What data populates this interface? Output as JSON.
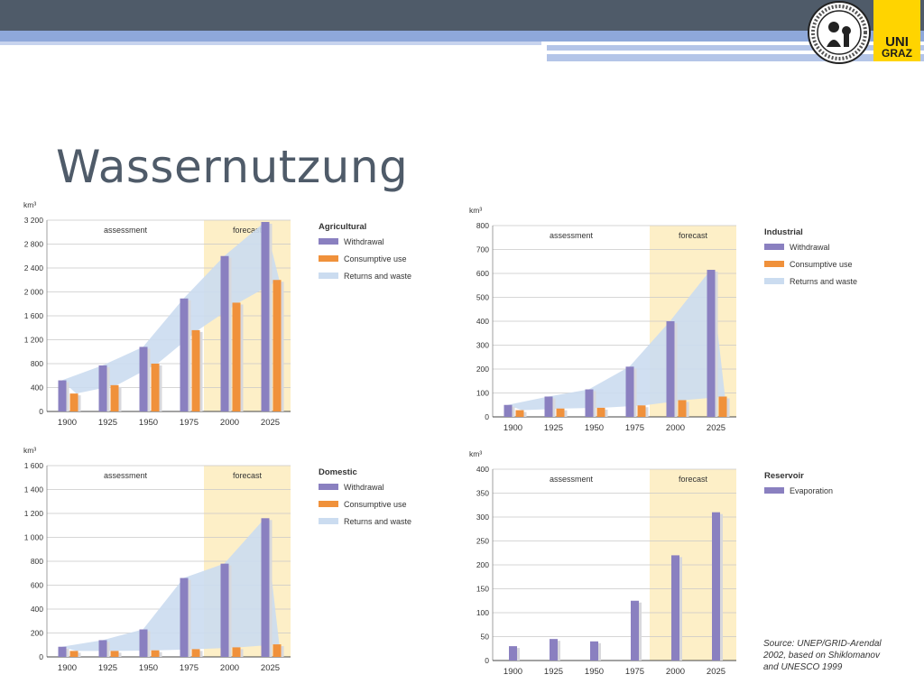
{
  "slide": {
    "title": "Wassernutzung",
    "source": "Source: UNEP/GRID-Arendal\n2002, based on Shiklomanov\nand UNESCO 1999"
  },
  "logo": {
    "text_top": "UNI",
    "text_bottom": "GRAZ"
  },
  "legend_labels": {
    "withdrawal": "Withdrawal",
    "consumptive": "Consumptive use",
    "returns": "Returns and waste",
    "evaporation": "Evaporation"
  },
  "colors": {
    "withdrawal": "#8a80c0",
    "consumptive": "#f0913b",
    "returns": "#cbdcf0",
    "forecast_bg": "#fdefc7",
    "header_dark": "#4f5b69",
    "header_blue": "#8ea8da"
  },
  "chart_data": [
    {
      "type": "bar",
      "name": "Agricultural",
      "unit": "km³",
      "categories": [
        "1900",
        "1925",
        "1950",
        "1975",
        "2000",
        "2025"
      ],
      "ylim": [
        0,
        3200
      ],
      "yticks": [
        "0",
        "400",
        "800",
        "1 200",
        "1 600",
        "2 000",
        "2 400",
        "2 800",
        "3 200"
      ],
      "ytick_values": [
        0,
        400,
        800,
        1200,
        1600,
        2000,
        2400,
        2800,
        3200
      ],
      "regions": [
        "assessment",
        "forecast"
      ],
      "series": [
        {
          "name": "Withdrawal",
          "values": [
            520,
            770,
            1080,
            1890,
            2600,
            3170
          ]
        },
        {
          "name": "Consumptive use",
          "values": [
            300,
            440,
            800,
            1360,
            1820,
            2200
          ]
        },
        {
          "name": "Returns and waste",
          "values": [
            220,
            330,
            280,
            530,
            780,
            970
          ]
        }
      ]
    },
    {
      "type": "bar",
      "name": "Industrial",
      "unit": "km³",
      "categories": [
        "1900",
        "1925",
        "1950",
        "1975",
        "2000",
        "2025"
      ],
      "ylim": [
        0,
        800
      ],
      "yticks": [
        "0",
        "100",
        "200",
        "300",
        "400",
        "500",
        "600",
        "700",
        "800"
      ],
      "ytick_values": [
        0,
        100,
        200,
        300,
        400,
        500,
        600,
        700,
        800
      ],
      "regions": [
        "assessment",
        "forecast"
      ],
      "series": [
        {
          "name": "Withdrawal",
          "values": [
            50,
            85,
            115,
            210,
            400,
            615
          ]
        },
        {
          "name": "Consumptive use",
          "values": [
            28,
            35,
            38,
            48,
            70,
            85
          ]
        },
        {
          "name": "Returns and waste",
          "values": [
            22,
            50,
            77,
            162,
            330,
            530
          ]
        }
      ]
    },
    {
      "type": "bar",
      "name": "Domestic",
      "unit": "km³",
      "categories": [
        "1900",
        "1925",
        "1950",
        "1975",
        "2000",
        "2025"
      ],
      "ylim": [
        0,
        1600
      ],
      "yticks": [
        "0",
        "200",
        "400",
        "600",
        "800",
        "1 000",
        "1 200",
        "1 400",
        "1 600"
      ],
      "ytick_values": [
        0,
        200,
        400,
        600,
        800,
        1000,
        1200,
        1400,
        1600
      ],
      "regions": [
        "assessment",
        "forecast"
      ],
      "series": [
        {
          "name": "Withdrawal",
          "values": [
            85,
            140,
            230,
            660,
            780,
            1160
          ]
        },
        {
          "name": "Consumptive use",
          "values": [
            50,
            50,
            55,
            65,
            80,
            105
          ]
        },
        {
          "name": "Returns and waste",
          "values": [
            35,
            90,
            175,
            595,
            700,
            1055
          ]
        }
      ]
    },
    {
      "type": "bar",
      "name": "Reservoir",
      "unit": "km³",
      "categories": [
        "1900",
        "1925",
        "1950",
        "1975",
        "2000",
        "2025"
      ],
      "ylim": [
        0,
        400
      ],
      "yticks": [
        "0",
        "50",
        "100",
        "150",
        "200",
        "250",
        "300",
        "350",
        "400"
      ],
      "ytick_values": [
        0,
        50,
        100,
        150,
        200,
        250,
        300,
        350,
        400
      ],
      "regions": [
        "assessment",
        "forecast"
      ],
      "series": [
        {
          "name": "Evaporation",
          "values": [
            30,
            45,
            40,
            125,
            220,
            310
          ]
        }
      ]
    }
  ]
}
